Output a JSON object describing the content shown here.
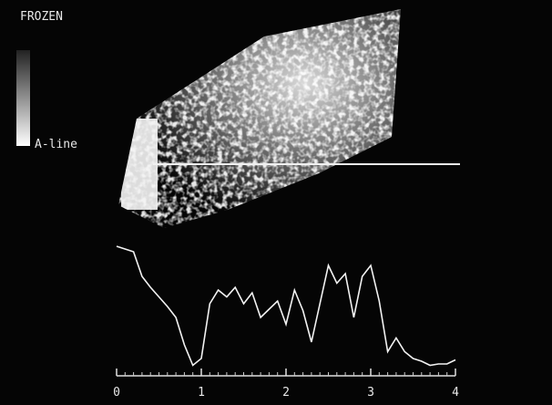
{
  "screen": {
    "status": "FROZEN",
    "a_line_label": "A-line"
  },
  "chart_data": {
    "type": "line",
    "x": [
      0,
      0.1,
      0.2,
      0.3,
      0.4,
      0.5,
      0.6,
      0.7,
      0.8,
      0.9,
      1,
      1.1,
      1.2,
      1.3,
      1.4,
      1.5,
      1.6,
      1.7,
      1.8,
      1.9,
      2,
      2.1,
      2.2,
      2.3,
      2.4,
      2.5,
      2.6,
      2.7,
      2.8,
      2.9,
      3,
      3.1,
      3.2,
      3.3,
      3.4,
      3.5,
      3.6,
      3.7,
      3.8,
      3.9,
      4
    ],
    "values": [
      92,
      90,
      88,
      70,
      62,
      55,
      48,
      40,
      20,
      5,
      10,
      50,
      60,
      55,
      62,
      50,
      58,
      40,
      46,
      52,
      35,
      60,
      45,
      22,
      50,
      78,
      65,
      72,
      40,
      70,
      78,
      52,
      15,
      25,
      15,
      10,
      8,
      5,
      6,
      6,
      9
    ],
    "color": "#f2f2f2",
    "xlim": [
      0,
      4
    ],
    "xticks": [
      0,
      1,
      2,
      3,
      4
    ]
  }
}
